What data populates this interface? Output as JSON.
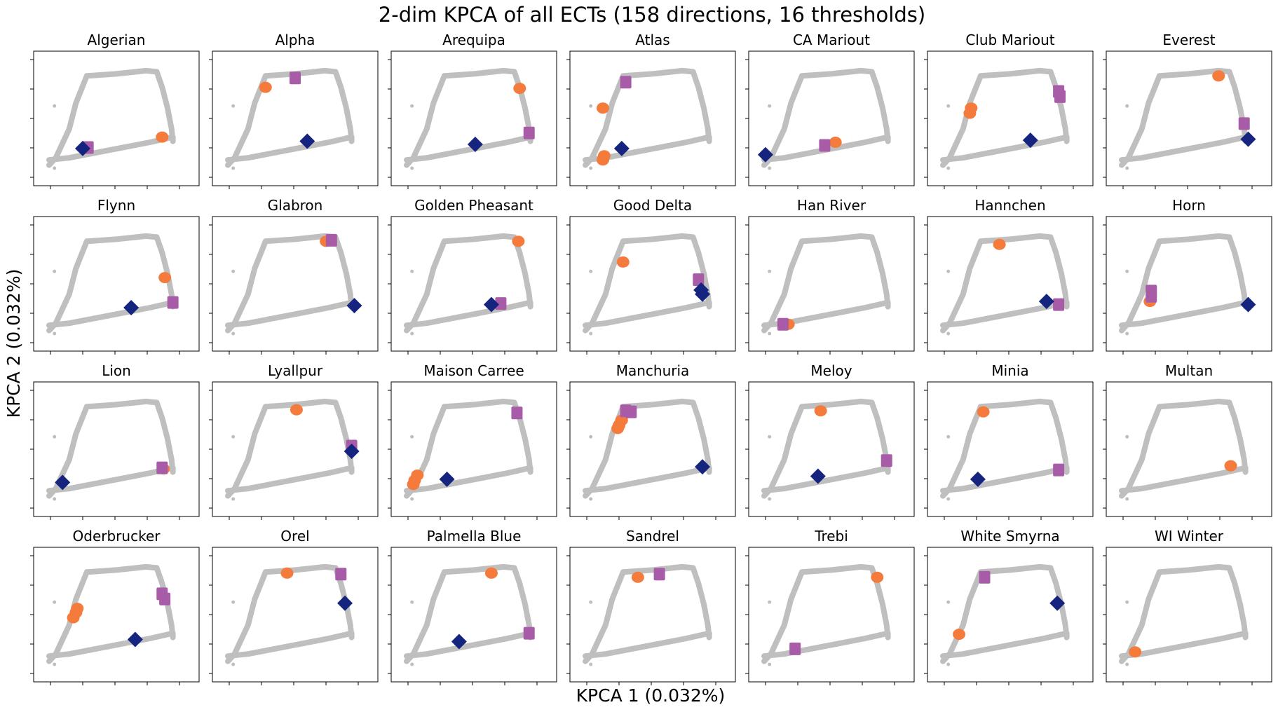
{
  "chart_data": {
    "type": "scatter",
    "title": "2-dim KPCA of all ECTs (158 directions, 16 thresholds)",
    "xlabel": "KPCA 1 (0.032%)",
    "ylabel": "KPCA 2 (0.032%)",
    "grid": false,
    "layout": {
      "rows": 4,
      "cols": 7
    },
    "series_colors": {
      "background": "#bfbfbf",
      "orange": "#f47b3b",
      "purple": "#a85ca8",
      "navy": "#15257f"
    },
    "background_path": {
      "x": [
        0.0,
        0.15,
        0.35,
        0.55,
        0.75,
        0.92,
        0.92,
        0.91,
        0.88,
        0.84,
        0.8,
        0.72,
        0.5,
        0.28,
        0.2,
        0.15,
        0.05,
        0.0
      ],
      "y": [
        0.1,
        0.12,
        0.17,
        0.22,
        0.27,
        0.32,
        0.28,
        0.4,
        0.6,
        0.8,
        0.95,
        0.96,
        0.93,
        0.91,
        0.65,
        0.4,
        0.12,
        0.05
      ]
    },
    "panels": [
      {
        "name": "Algerian",
        "orange": [
          [
            0.84,
            0.32
          ]
        ],
        "purple": [
          [
            0.29,
            0.22
          ]
        ],
        "navy": [
          [
            0.25,
            0.21
          ]
        ]
      },
      {
        "name": "Alpha",
        "orange": [
          [
            0.28,
            0.8
          ]
        ],
        "purple": [
          [
            0.5,
            0.89
          ]
        ],
        "navy": [
          [
            0.59,
            0.28
          ]
        ]
      },
      {
        "name": "Arequipa",
        "orange": [
          [
            0.84,
            0.79
          ]
        ],
        "purple": [
          [
            0.91,
            0.36
          ]
        ],
        "navy": [
          [
            0.51,
            0.25
          ]
        ]
      },
      {
        "name": "Atlas",
        "orange": [
          [
            0.13,
            0.6
          ],
          [
            0.14,
            0.14
          ],
          [
            0.13,
            0.1
          ]
        ],
        "purple": [
          [
            0.3,
            0.85
          ]
        ],
        "navy": [
          [
            0.27,
            0.21
          ]
        ]
      },
      {
        "name": "CA Mariout",
        "orange": [
          [
            0.53,
            0.27
          ]
        ],
        "purple": [
          [
            0.45,
            0.24
          ]
        ],
        "navy": [
          [
            0.01,
            0.15
          ]
        ]
      },
      {
        "name": "Club Mariout",
        "orange": [
          [
            0.21,
            0.6
          ],
          [
            0.2,
            0.55
          ]
        ],
        "purple": [
          [
            0.86,
            0.76
          ],
          [
            0.87,
            0.71
          ]
        ],
        "navy": [
          [
            0.65,
            0.29
          ]
        ]
      },
      {
        "name": "Everest",
        "orange": [
          [
            0.72,
            0.91
          ]
        ],
        "purple": [
          [
            0.91,
            0.45
          ]
        ],
        "navy": [
          [
            0.94,
            0.3
          ]
        ]
      },
      {
        "name": "Flynn",
        "orange": [
          [
            0.86,
            0.56
          ]
        ],
        "purple": [
          [
            0.92,
            0.32
          ]
        ],
        "navy": [
          [
            0.61,
            0.27
          ]
        ]
      },
      {
        "name": "Glabron",
        "orange": [
          [
            0.73,
            0.91
          ]
        ],
        "purple": [
          [
            0.77,
            0.92
          ]
        ],
        "navy": [
          [
            0.94,
            0.29
          ]
        ]
      },
      {
        "name": "Golden Pheasant",
        "orange": [
          [
            0.83,
            0.91
          ]
        ],
        "purple": [
          [
            0.7,
            0.31
          ]
        ],
        "navy": [
          [
            0.63,
            0.3
          ]
        ]
      },
      {
        "name": "Good Delta",
        "orange": [
          [
            0.28,
            0.71
          ]
        ],
        "purple": [
          [
            0.84,
            0.54
          ]
        ],
        "navy": [
          [
            0.86,
            0.44
          ],
          [
            0.87,
            0.4
          ]
        ]
      },
      {
        "name": "Han River",
        "orange": [
          [
            0.18,
            0.11
          ]
        ],
        "purple": [
          [
            0.14,
            0.11
          ]
        ],
        "navy": []
      },
      {
        "name": "Hannchen",
        "orange": [
          [
            0.42,
            0.88
          ]
        ],
        "purple": [
          [
            0.86,
            0.3
          ]
        ],
        "navy": [
          [
            0.77,
            0.33
          ]
        ]
      },
      {
        "name": "Horn",
        "orange": [
          [
            0.21,
            0.33
          ]
        ],
        "purple": [
          [
            0.22,
            0.43
          ],
          [
            0.22,
            0.38
          ]
        ],
        "navy": [
          [
            0.94,
            0.3
          ]
        ]
      },
      {
        "name": "Lion",
        "orange": [
          [
            0.85,
            0.31
          ]
        ],
        "purple": [
          [
            0.84,
            0.32
          ]
        ],
        "navy": [
          [
            0.1,
            0.18
          ]
        ]
      },
      {
        "name": "Lyallpur",
        "orange": [
          [
            0.51,
            0.88
          ]
        ],
        "purple": [
          [
            0.92,
            0.53
          ]
        ],
        "navy": [
          [
            0.92,
            0.48
          ]
        ]
      },
      {
        "name": "Maison Carree",
        "orange": [
          [
            0.08,
            0.25
          ],
          [
            0.06,
            0.2
          ],
          [
            0.05,
            0.16
          ]
        ],
        "purple": [
          [
            0.82,
            0.85
          ]
        ],
        "navy": [
          [
            0.3,
            0.21
          ]
        ]
      },
      {
        "name": "Manchuria",
        "orange": [
          [
            0.27,
            0.78
          ],
          [
            0.25,
            0.73
          ],
          [
            0.24,
            0.7
          ]
        ],
        "purple": [
          [
            0.3,
            0.87
          ],
          [
            0.34,
            0.86
          ]
        ],
        "navy": [
          [
            0.87,
            0.33
          ]
        ]
      },
      {
        "name": "Meloy",
        "orange": [
          [
            0.42,
            0.87
          ]
        ],
        "purple": [
          [
            0.91,
            0.39
          ]
        ],
        "navy": [
          [
            0.4,
            0.24
          ]
        ]
      },
      {
        "name": "Minia",
        "orange": [
          [
            0.3,
            0.86
          ]
        ],
        "purple": [
          [
            0.86,
            0.3
          ]
        ],
        "navy": [
          [
            0.26,
            0.21
          ]
        ]
      },
      {
        "name": "Multan",
        "orange": [
          [
            0.81,
            0.34
          ]
        ],
        "purple": [],
        "navy": []
      },
      {
        "name": "Oderbrucker",
        "orange": [
          [
            0.21,
            0.56
          ],
          [
            0.2,
            0.52
          ],
          [
            0.18,
            0.47
          ]
        ],
        "purple": [
          [
            0.84,
            0.7
          ],
          [
            0.86,
            0.65
          ]
        ],
        "navy": [
          [
            0.64,
            0.26
          ]
        ]
      },
      {
        "name": "Orel",
        "orange": [
          [
            0.44,
            0.9
          ]
        ],
        "purple": [
          [
            0.84,
            0.89
          ]
        ],
        "navy": [
          [
            0.87,
            0.61
          ]
        ]
      },
      {
        "name": "Palmella Blue",
        "orange": [
          [
            0.63,
            0.9
          ]
        ],
        "purple": [
          [
            0.91,
            0.32
          ]
        ],
        "navy": [
          [
            0.39,
            0.24
          ]
        ]
      },
      {
        "name": "Sandrel",
        "orange": [
          [
            0.39,
            0.86
          ]
        ],
        "purple": [
          [
            0.55,
            0.89
          ]
        ],
        "navy": []
      },
      {
        "name": "Trebi",
        "orange": [
          [
            0.84,
            0.86
          ]
        ],
        "purple": [
          [
            0.23,
            0.17
          ]
        ],
        "navy": []
      },
      {
        "name": "White Smyrna",
        "orange": [
          [
            0.12,
            0.31
          ]
        ],
        "purple": [
          [
            0.31,
            0.86
          ]
        ],
        "navy": [
          [
            0.85,
            0.61
          ]
        ]
      },
      {
        "name": "WI Winter",
        "orange": [
          [
            0.1,
            0.14
          ]
        ],
        "purple": [],
        "navy": []
      }
    ]
  }
}
